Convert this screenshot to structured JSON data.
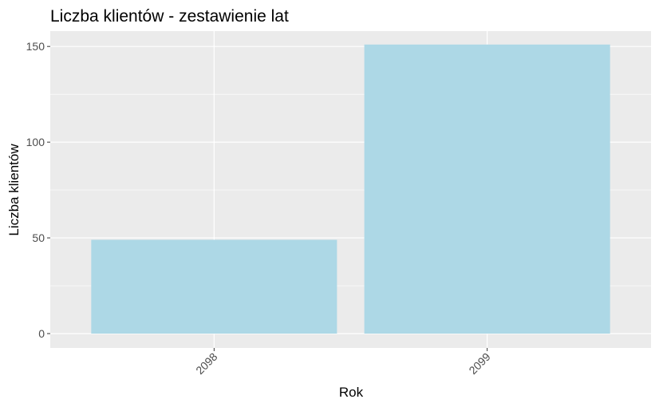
{
  "chart_data": {
    "type": "bar",
    "title": "Liczba klientów - zestawienie lat",
    "xlabel": "Rok",
    "ylabel": "Liczba klientów",
    "categories": [
      "2098",
      "2099"
    ],
    "values": [
      49,
      151
    ],
    "ylim": [
      -7.5,
      158
    ],
    "yticks": [
      0,
      50,
      100,
      150
    ],
    "grid": true,
    "legend": "none",
    "x_tick_rotation_deg": -45,
    "colors": {
      "bar_fill": "#add8e6",
      "panel_background": "#ebebeb",
      "grid_line": "#ffffff",
      "tick_label": "#4d4d4d",
      "axis_tick": "#333333"
    }
  }
}
